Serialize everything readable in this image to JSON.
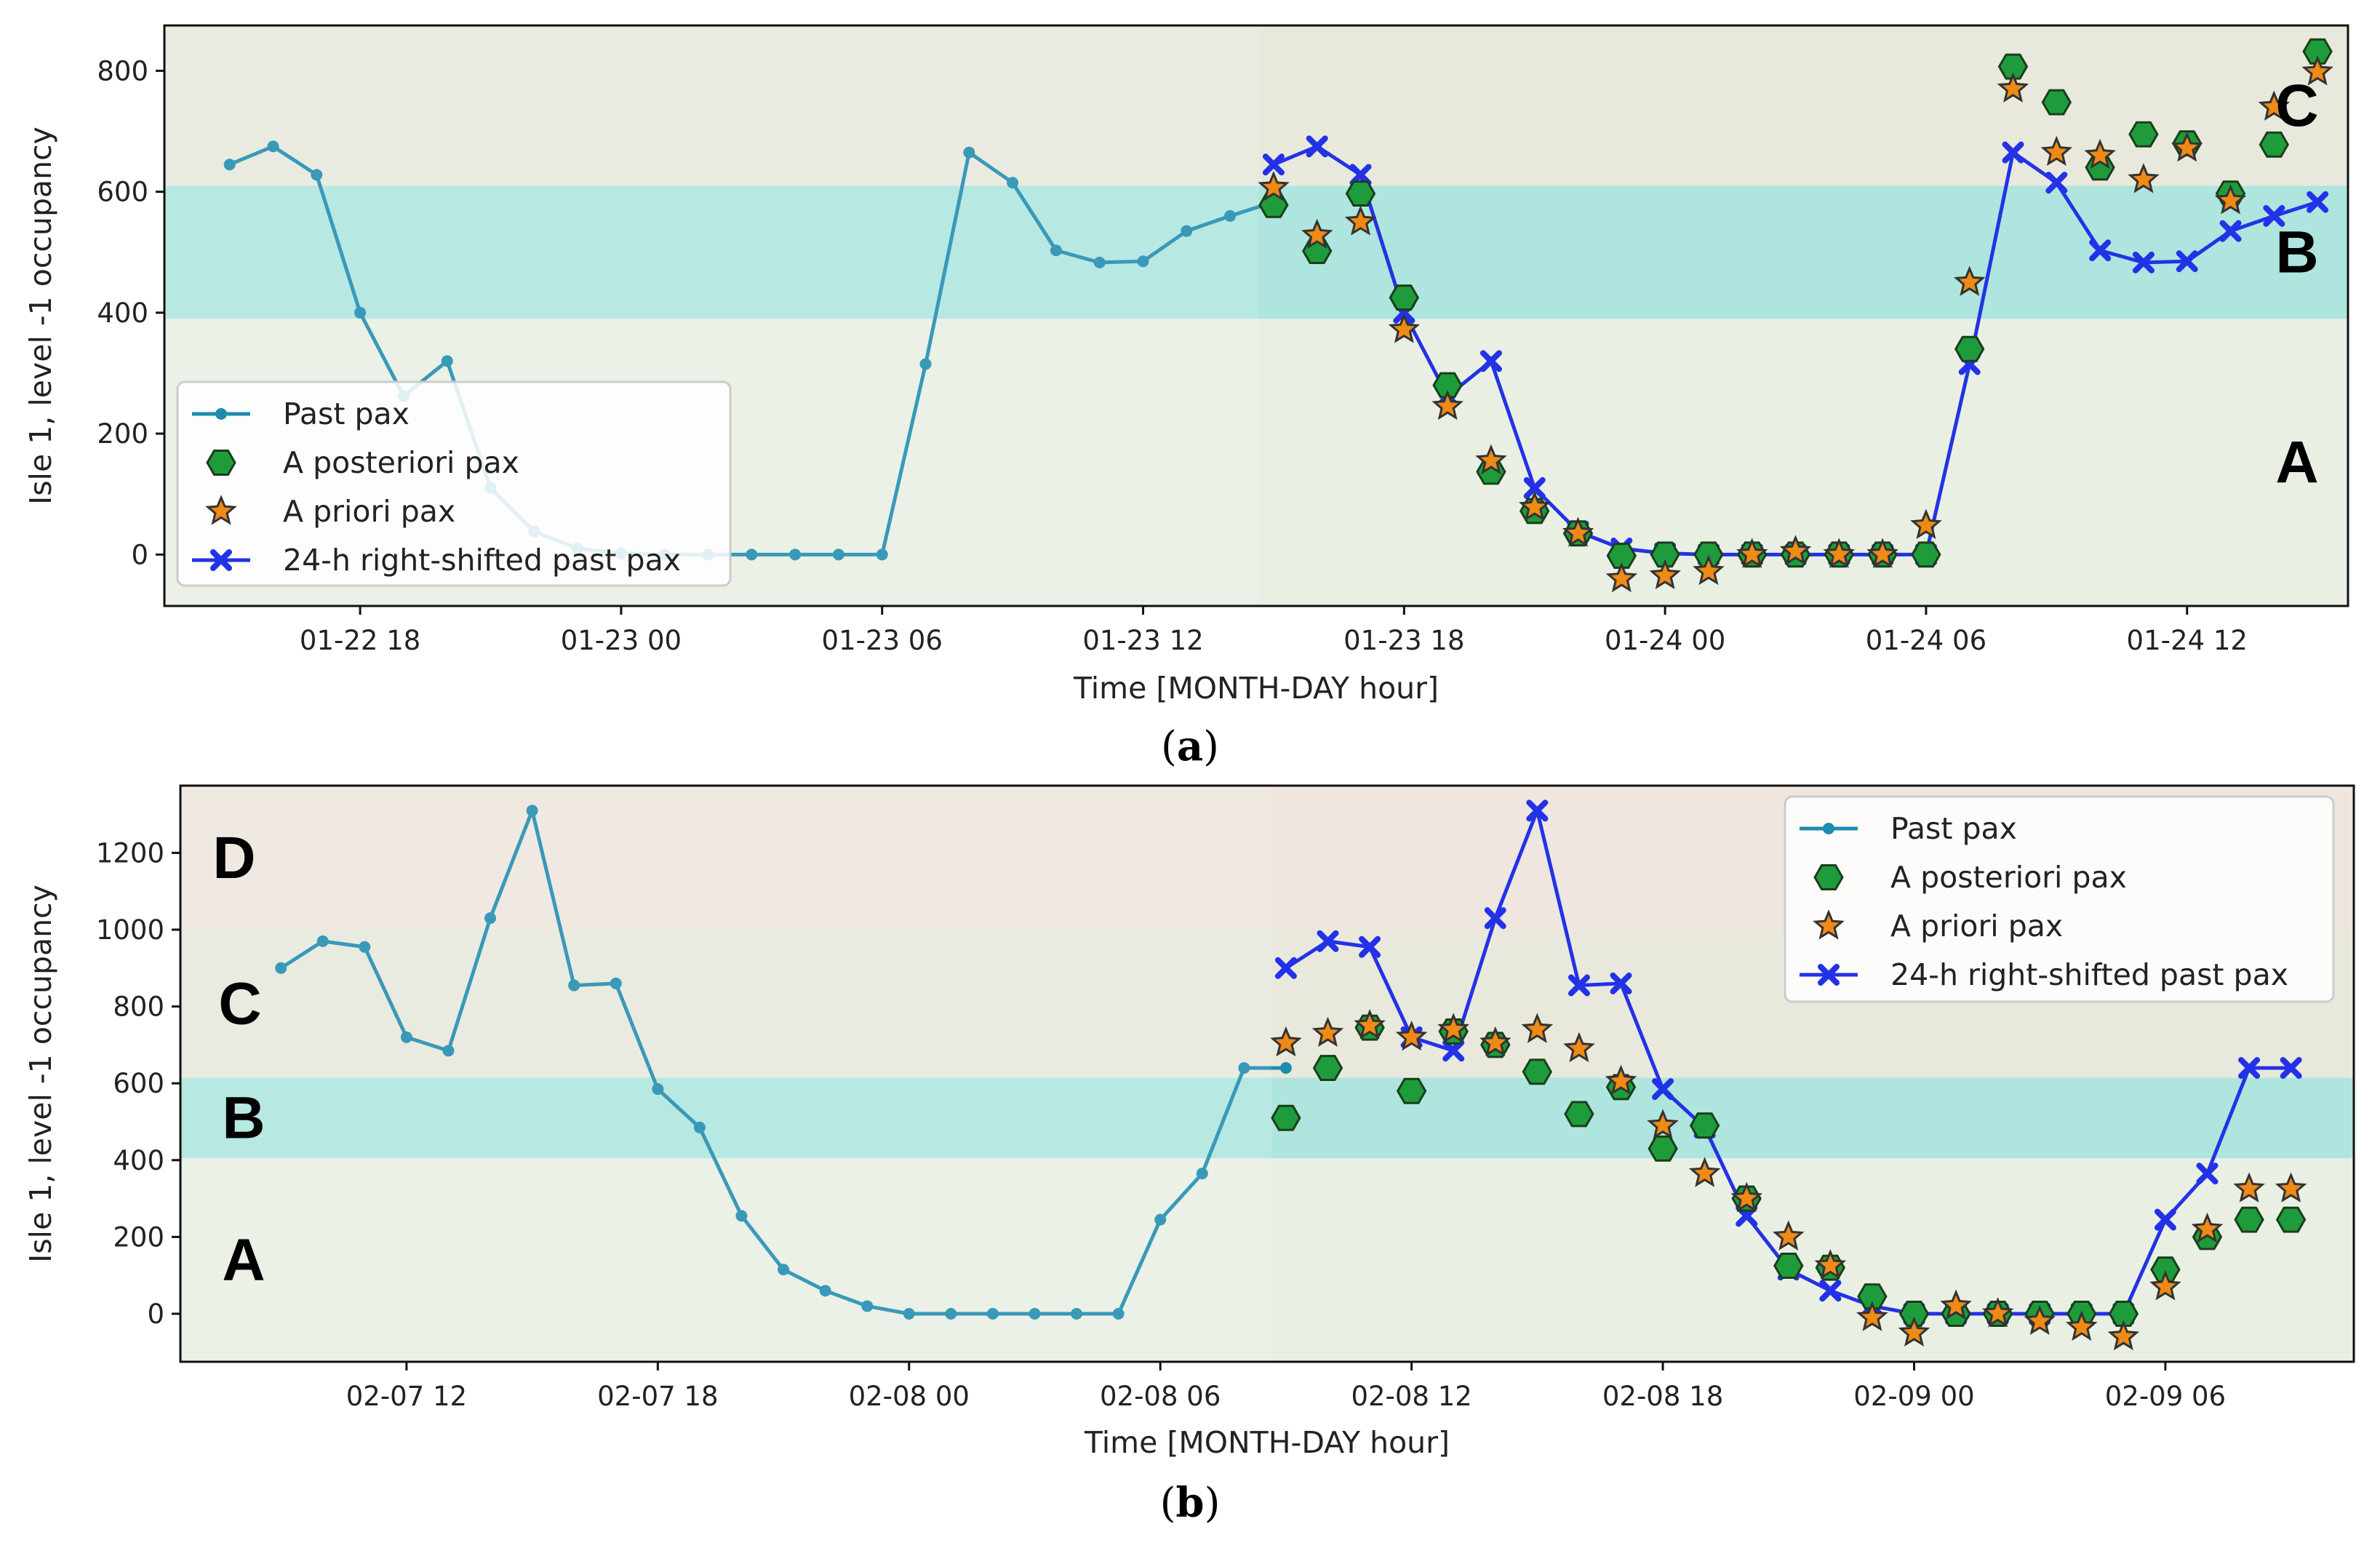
{
  "chart_data": [
    {
      "type": "line",
      "caption": "a",
      "xlabel": "Time [MONTH-DAY hour]",
      "ylabel": "Isle 1, level -1 occupancy",
      "xlim": [
        13.5,
        63.7
      ],
      "ylim": [
        -85,
        875
      ],
      "x_unit": "hours since 01-22 00",
      "x_ticks": [
        {
          "x": 18,
          "label": "01-22 18"
        },
        {
          "x": 24,
          "label": "01-23 00"
        },
        {
          "x": 30,
          "label": "01-23 06"
        },
        {
          "x": 36,
          "label": "01-23 12"
        },
        {
          "x": 42,
          "label": "01-23 18"
        },
        {
          "x": 48,
          "label": "01-24 00"
        },
        {
          "x": 54,
          "label": "01-24 06"
        },
        {
          "x": 60,
          "label": "01-24 12"
        }
      ],
      "y_ticks": [
        0,
        200,
        400,
        600,
        800
      ],
      "bands": [
        {
          "label": "A",
          "from": -85,
          "to": 390,
          "color": "#e9f0e3"
        },
        {
          "label": "B",
          "from": 390,
          "to": 610,
          "color": "#aee5de"
        },
        {
          "label": "C",
          "from": 610,
          "to": 875,
          "color": "#e8e9dc"
        }
      ],
      "legend": {
        "placement": "lower-left",
        "entries": [
          "Past pax",
          "A posteriori pax",
          "A priori pax",
          "24-h right-shifted past pax"
        ]
      },
      "series": [
        {
          "name": "Past pax",
          "color": "#1e8bb0",
          "x": [
            15,
            16,
            17,
            18,
            19,
            20,
            21,
            22,
            23,
            24,
            25,
            26,
            27,
            28,
            29,
            30,
            31,
            32,
            33,
            34,
            35,
            36,
            37,
            38,
            39
          ],
          "values": [
            645,
            675,
            628,
            400,
            262,
            320,
            110,
            38,
            10,
            2,
            0,
            0,
            0,
            0,
            0,
            0,
            315,
            665,
            615,
            503,
            483,
            485,
            535,
            560,
            583
          ]
        },
        {
          "name": "24-h right-shifted past pax",
          "color": "#2332e6",
          "x": [
            39,
            40,
            41,
            42,
            43,
            44,
            45,
            46,
            47,
            48,
            49,
            50,
            51,
            52,
            53,
            54,
            55,
            56,
            57,
            58,
            59,
            60,
            61,
            62,
            63
          ],
          "values": [
            645,
            675,
            628,
            400,
            262,
            320,
            110,
            38,
            10,
            2,
            0,
            0,
            0,
            0,
            0,
            0,
            315,
            665,
            615,
            503,
            483,
            485,
            535,
            560,
            583
          ]
        },
        {
          "name": "A posteriori pax",
          "color": "#1e9c3c",
          "x": [
            39,
            40,
            41,
            42,
            43,
            44,
            45,
            46,
            47,
            48,
            49,
            50,
            51,
            52,
            53,
            54,
            55,
            56,
            57,
            58,
            59,
            60,
            61,
            62,
            63
          ],
          "values": [
            578,
            502,
            597,
            425,
            280,
            137,
            72,
            35,
            -2,
            0,
            0,
            0,
            0,
            0,
            0,
            0,
            340,
            807,
            748,
            640,
            695,
            680,
            597,
            678,
            832
          ]
        },
        {
          "name": "A priori pax",
          "color": "#ef8a16",
          "x": [
            39,
            40,
            41,
            42,
            43,
            44,
            45,
            46,
            47,
            48,
            49,
            50,
            51,
            52,
            53,
            54,
            55,
            56,
            57,
            58,
            59,
            60,
            61,
            62,
            63
          ],
          "values": [
            607,
            528,
            550,
            372,
            245,
            155,
            78,
            35,
            -40,
            -35,
            -28,
            0,
            5,
            0,
            0,
            48,
            450,
            770,
            665,
            660,
            620,
            672,
            585,
            740,
            798
          ]
        }
      ]
    },
    {
      "type": "line",
      "caption": "b",
      "xlabel": "Time [MONTH-DAY hour]",
      "ylabel": "Isle 1, level -1 occupancy",
      "xlim": [
        6.6,
        58.5
      ],
      "ylim": [
        -125,
        1375
      ],
      "x_unit": "hours since 02-07 00",
      "x_ticks": [
        {
          "x": 12,
          "label": "02-07 12"
        },
        {
          "x": 18,
          "label": "02-07 18"
        },
        {
          "x": 24,
          "label": "02-08 00"
        },
        {
          "x": 30,
          "label": "02-08 06"
        },
        {
          "x": 36,
          "label": "02-08 12"
        },
        {
          "x": 42,
          "label": "02-08 18"
        },
        {
          "x": 48,
          "label": "02-09 00"
        },
        {
          "x": 54,
          "label": "02-09 06"
        }
      ],
      "y_ticks": [
        0,
        200,
        400,
        600,
        800,
        1000,
        1200
      ],
      "bands": [
        {
          "label": "A",
          "from": -125,
          "to": 405,
          "color": "#e9f0e3"
        },
        {
          "label": "B",
          "from": 405,
          "to": 615,
          "color": "#aee5de"
        },
        {
          "label": "C",
          "from": 615,
          "to": 1000,
          "color": "#e8e9dc"
        },
        {
          "label": "D",
          "from": 1000,
          "to": 1375,
          "color": "#eee6df"
        }
      ],
      "legend": {
        "placement": "upper-right",
        "entries": [
          "Past pax",
          "A posteriori pax",
          "A priori pax",
          "24-h right-shifted past pax"
        ]
      },
      "series": [
        {
          "name": "Past pax",
          "color": "#1e8bb0",
          "x": [
            9,
            10,
            11,
            12,
            13,
            14,
            15,
            16,
            17,
            18,
            19,
            20,
            21,
            22,
            23,
            24,
            25,
            26,
            27,
            28,
            29,
            30,
            31,
            32,
            33
          ],
          "values": [
            900,
            970,
            955,
            720,
            685,
            1030,
            1310,
            855,
            860,
            585,
            485,
            255,
            115,
            60,
            20,
            0,
            0,
            0,
            0,
            0,
            0,
            245,
            365,
            640,
            640
          ]
        },
        {
          "name": "24-h right-shifted past pax",
          "color": "#2332e6",
          "x": [
            33,
            34,
            35,
            36,
            37,
            38,
            39,
            40,
            41,
            42,
            43,
            44,
            45,
            46,
            47,
            48,
            49,
            50,
            51,
            52,
            53,
            54,
            55,
            56,
            57
          ],
          "values": [
            900,
            970,
            955,
            720,
            685,
            1030,
            1310,
            855,
            860,
            585,
            485,
            255,
            115,
            60,
            20,
            0,
            0,
            0,
            0,
            0,
            0,
            245,
            365,
            640,
            640
          ]
        },
        {
          "name": "A posteriori pax",
          "color": "#1e9c3c",
          "x": [
            33,
            34,
            35,
            36,
            37,
            38,
            39,
            40,
            41,
            42,
            43,
            44,
            45,
            46,
            47,
            48,
            49,
            50,
            51,
            52,
            53,
            54,
            55,
            56,
            57
          ],
          "values": [
            510,
            640,
            745,
            580,
            735,
            700,
            630,
            520,
            590,
            430,
            490,
            300,
            125,
            120,
            45,
            0,
            0,
            0,
            0,
            0,
            0,
            115,
            200,
            245,
            245
          ]
        },
        {
          "name": "A priori pax",
          "color": "#ef8a16",
          "x": [
            33,
            34,
            35,
            36,
            37,
            38,
            39,
            40,
            41,
            42,
            43,
            44,
            45,
            46,
            47,
            48,
            49,
            50,
            51,
            52,
            53,
            54,
            55,
            56,
            57
          ],
          "values": [
            705,
            730,
            750,
            720,
            740,
            705,
            740,
            690,
            605,
            490,
            365,
            300,
            200,
            125,
            -10,
            -50,
            20,
            0,
            -20,
            -35,
            -60,
            70,
            220,
            325,
            325
          ]
        }
      ]
    }
  ],
  "colors": {
    "past": "#1e8bb0",
    "shifted": "#2332e6",
    "posteriori_fill": "#1e9c3c",
    "priori_fill": "#ef8a16"
  }
}
